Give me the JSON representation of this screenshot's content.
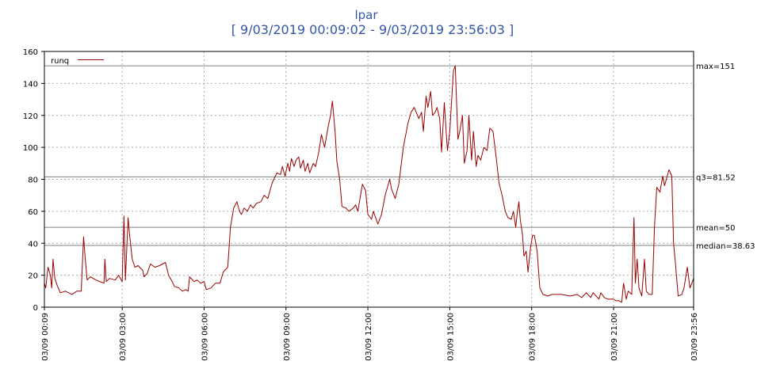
{
  "chart_data": {
    "type": "line",
    "title": "lpar",
    "subtitle": "[ 9/03/2019 00:09:02 - 9/03/2019 23:56:03 ]",
    "xlabel": "",
    "ylabel": "",
    "ylim": [
      0,
      160
    ],
    "yticks": [
      0,
      20,
      40,
      60,
      80,
      100,
      120,
      140,
      160
    ],
    "xlim": [
      "03/09 00:09",
      "03/09 23:56"
    ],
    "xticks": [
      "03/09 00:09",
      "03/09 03:00",
      "03/09 06:00",
      "03/09 09:00",
      "03/09 12:00",
      "03/09 15:00",
      "03/09 18:00",
      "03/09 21:00",
      "03/09 23:56"
    ],
    "grid": true,
    "legend_position": "top-left",
    "colors": {
      "series": "#990000",
      "reference": "#808080",
      "grid": "#aaaaaa",
      "title": "#3355aa"
    },
    "reference_lines": [
      {
        "label": "max=151",
        "value": 151
      },
      {
        "label": "q3=81.52",
        "value": 81.52
      },
      {
        "label": "mean=50",
        "value": 50
      },
      {
        "label": "median=38.63",
        "value": 38.63
      }
    ],
    "series": [
      {
        "name": "runq",
        "points": [
          [
            "03/09 00:09",
            15
          ],
          [
            "03/09 00:12",
            12
          ],
          [
            "03/09 00:17",
            25
          ],
          [
            "03/09 00:22",
            20
          ],
          [
            "03/09 00:25",
            12
          ],
          [
            "03/09 00:28",
            30
          ],
          [
            "03/09 00:32",
            18
          ],
          [
            "03/09 00:38",
            13
          ],
          [
            "03/09 00:44",
            9
          ],
          [
            "03/09 00:55",
            10
          ],
          [
            "03/09 01:10",
            8
          ],
          [
            "03/09 01:20",
            10
          ],
          [
            "03/09 01:28",
            10
          ],
          [
            "03/09 01:30",
            10
          ],
          [
            "03/09 01:35",
            44
          ],
          [
            "03/09 01:38",
            33
          ],
          [
            "03/09 01:43",
            17
          ],
          [
            "03/09 01:50",
            19
          ],
          [
            "03/09 02:02",
            17
          ],
          [
            "03/09 02:20",
            15
          ],
          [
            "03/09 02:22",
            30
          ],
          [
            "03/09 02:25",
            16
          ],
          [
            "03/09 02:32",
            18
          ],
          [
            "03/09 02:45",
            17
          ],
          [
            "03/09 02:52",
            20
          ],
          [
            "03/09 03:00",
            16
          ],
          [
            "03/09 03:04",
            57
          ],
          [
            "03/09 03:07",
            17
          ],
          [
            "03/09 03:13",
            56
          ],
          [
            "03/09 03:16",
            46
          ],
          [
            "03/09 03:22",
            30
          ],
          [
            "03/09 03:28",
            25
          ],
          [
            "03/09 03:35",
            26
          ],
          [
            "03/09 03:45",
            23
          ],
          [
            "03/09 03:48",
            19
          ],
          [
            "03/09 03:55",
            21
          ],
          [
            "03/09 04:02",
            27
          ],
          [
            "03/09 04:12",
            25
          ],
          [
            "03/09 04:22",
            26
          ],
          [
            "03/09 04:35",
            28
          ],
          [
            "03/09 04:42",
            20
          ],
          [
            "03/09 04:48",
            17
          ],
          [
            "03/09 04:55",
            13
          ],
          [
            "03/09 05:05",
            12
          ],
          [
            "03/09 05:12",
            10
          ],
          [
            "03/09 05:20",
            11
          ],
          [
            "03/09 05:25",
            10
          ],
          [
            "03/09 05:28",
            19
          ],
          [
            "03/09 05:38",
            16
          ],
          [
            "03/09 05:45",
            17
          ],
          [
            "03/09 05:52",
            15
          ],
          [
            "03/09 06:00",
            16
          ],
          [
            "03/09 06:05",
            11
          ],
          [
            "03/09 06:15",
            12
          ],
          [
            "03/09 06:25",
            15
          ],
          [
            "03/09 06:35",
            15
          ],
          [
            "03/09 06:42",
            22
          ],
          [
            "03/09 06:52",
            25
          ],
          [
            "03/09 06:58",
            50
          ],
          [
            "03/09 07:05",
            62
          ],
          [
            "03/09 07:12",
            66
          ],
          [
            "03/09 07:18",
            60
          ],
          [
            "03/09 07:22",
            58
          ],
          [
            "03/09 07:28",
            62
          ],
          [
            "03/09 07:35",
            60
          ],
          [
            "03/09 07:42",
            64
          ],
          [
            "03/09 07:48",
            62
          ],
          [
            "03/09 07:55",
            65
          ],
          [
            "03/09 08:05",
            66
          ],
          [
            "03/09 08:12",
            70
          ],
          [
            "03/09 08:20",
            68
          ],
          [
            "03/09 08:30",
            78
          ],
          [
            "03/09 08:40",
            84
          ],
          [
            "03/09 08:48",
            83
          ],
          [
            "03/09 08:52",
            88
          ],
          [
            "03/09 08:58",
            82
          ],
          [
            "03/09 09:04",
            90
          ],
          [
            "03/09 09:08",
            85
          ],
          [
            "03/09 09:12",
            93
          ],
          [
            "03/09 09:18",
            88
          ],
          [
            "03/09 09:22",
            92
          ],
          [
            "03/09 09:28",
            94
          ],
          [
            "03/09 09:32",
            87
          ],
          [
            "03/09 09:38",
            92
          ],
          [
            "03/09 09:42",
            85
          ],
          [
            "03/09 09:48",
            90
          ],
          [
            "03/09 09:52",
            84
          ],
          [
            "03/09 10:00",
            90
          ],
          [
            "03/09 10:05",
            88
          ],
          [
            "03/09 10:12",
            97
          ],
          [
            "03/09 10:18",
            108
          ],
          [
            "03/09 10:25",
            100
          ],
          [
            "03/09 10:32",
            112
          ],
          [
            "03/09 10:38",
            120
          ],
          [
            "03/09 10:42",
            129
          ],
          [
            "03/09 10:48",
            110
          ],
          [
            "03/09 10:52",
            91
          ],
          [
            "03/09 10:58",
            80
          ],
          [
            "03/09 11:03",
            63
          ],
          [
            "03/09 11:12",
            62
          ],
          [
            "03/09 11:18",
            60
          ],
          [
            "03/09 11:28",
            62
          ],
          [
            "03/09 11:33",
            64
          ],
          [
            "03/09 11:38",
            60
          ],
          [
            "03/09 11:48",
            77
          ],
          [
            "03/09 11:55",
            73
          ],
          [
            "03/09 12:00",
            58
          ],
          [
            "03/09 12:08",
            55
          ],
          [
            "03/09 12:12",
            60
          ],
          [
            "03/09 12:22",
            52
          ],
          [
            "03/09 12:30",
            58
          ],
          [
            "03/09 12:38",
            70
          ],
          [
            "03/09 12:48",
            80
          ],
          [
            "03/09 12:52",
            74
          ],
          [
            "03/09 13:00",
            68
          ],
          [
            "03/09 13:08",
            77
          ],
          [
            "03/09 13:18",
            100
          ],
          [
            "03/09 13:28",
            115
          ],
          [
            "03/09 13:35",
            122
          ],
          [
            "03/09 13:42",
            125
          ],
          [
            "03/09 13:52",
            118
          ],
          [
            "03/09 13:58",
            122
          ],
          [
            "03/09 14:02",
            110
          ],
          [
            "03/09 14:08",
            132
          ],
          [
            "03/09 14:12",
            125
          ],
          [
            "03/09 14:18",
            135
          ],
          [
            "03/09 14:22",
            120
          ],
          [
            "03/09 14:28",
            122
          ],
          [
            "03/09 14:32",
            125
          ],
          [
            "03/09 14:38",
            118
          ],
          [
            "03/09 14:42",
            97
          ],
          [
            "03/09 14:48",
            128
          ],
          [
            "03/09 14:52",
            110
          ],
          [
            "03/09 14:55",
            98
          ],
          [
            "03/09 15:00",
            110
          ],
          [
            "03/09 15:08",
            148
          ],
          [
            "03/09 15:12",
            151
          ],
          [
            "03/09 15:18",
            105
          ],
          [
            "03/09 15:22",
            110
          ],
          [
            "03/09 15:28",
            120
          ],
          [
            "03/09 15:32",
            90
          ],
          [
            "03/09 15:38",
            98
          ],
          [
            "03/09 15:42",
            120
          ],
          [
            "03/09 15:48",
            92
          ],
          [
            "03/09 15:52",
            110
          ],
          [
            "03/09 15:58",
            88
          ],
          [
            "03/09 16:02",
            95
          ],
          [
            "03/09 16:08",
            92
          ],
          [
            "03/09 16:15",
            100
          ],
          [
            "03/09 16:22",
            98
          ],
          [
            "03/09 16:28",
            112
          ],
          [
            "03/09 16:35",
            110
          ],
          [
            "03/09 16:42",
            94
          ],
          [
            "03/09 16:48",
            78
          ],
          [
            "03/09 16:55",
            70
          ],
          [
            "03/09 17:02",
            60
          ],
          [
            "03/09 17:08",
            56
          ],
          [
            "03/09 17:15",
            55
          ],
          [
            "03/09 17:20",
            60
          ],
          [
            "03/09 17:25",
            50
          ],
          [
            "03/09 17:28",
            58
          ],
          [
            "03/09 17:32",
            66
          ],
          [
            "03/09 17:35",
            55
          ],
          [
            "03/09 17:40",
            45
          ],
          [
            "03/09 17:43",
            32
          ],
          [
            "03/09 17:48",
            35
          ],
          [
            "03/09 17:52",
            22
          ],
          [
            "03/09 17:58",
            38
          ],
          [
            "03/09 18:02",
            45
          ],
          [
            "03/09 18:06",
            45
          ],
          [
            "03/09 18:12",
            35
          ],
          [
            "03/09 18:18",
            12
          ],
          [
            "03/09 18:25",
            8
          ],
          [
            "03/09 18:35",
            7
          ],
          [
            "03/09 18:45",
            8
          ],
          [
            "03/09 19:05",
            8
          ],
          [
            "03/09 19:25",
            7
          ],
          [
            "03/09 19:40",
            8
          ],
          [
            "03/09 19:50",
            6
          ],
          [
            "03/09 20:00",
            9
          ],
          [
            "03/09 20:10",
            6
          ],
          [
            "03/09 20:15",
            9
          ],
          [
            "03/09 20:28",
            5
          ],
          [
            "03/09 20:32",
            9
          ],
          [
            "03/09 20:40",
            6
          ],
          [
            "03/09 20:48",
            5
          ],
          [
            "03/09 21:00",
            5
          ],
          [
            "03/09 21:05",
            4
          ],
          [
            "03/09 21:12",
            4
          ],
          [
            "03/09 21:18",
            3
          ],
          [
            "03/09 21:22",
            15
          ],
          [
            "03/09 21:28",
            5
          ],
          [
            "03/09 21:32",
            10
          ],
          [
            "03/09 21:40",
            8
          ],
          [
            "03/09 21:45",
            56
          ],
          [
            "03/09 21:48",
            15
          ],
          [
            "03/09 21:52",
            30
          ],
          [
            "03/09 21:56",
            12
          ],
          [
            "03/09 22:02",
            7
          ],
          [
            "03/09 22:08",
            30
          ],
          [
            "03/09 22:12",
            10
          ],
          [
            "03/09 22:18",
            8
          ],
          [
            "03/09 22:25",
            8
          ],
          [
            "03/09 22:30",
            50
          ],
          [
            "03/09 22:35",
            75
          ],
          [
            "03/09 22:42",
            72
          ],
          [
            "03/09 22:48",
            82
          ],
          [
            "03/09 22:52",
            76
          ],
          [
            "03/09 23:02",
            86
          ],
          [
            "03/09 23:08",
            82
          ],
          [
            "03/09 23:12",
            40
          ],
          [
            "03/09 23:16",
            28
          ],
          [
            "03/09 23:22",
            7
          ],
          [
            "03/09 23:30",
            8
          ],
          [
            "03/09 23:35",
            12
          ],
          [
            "03/09 23:42",
            25
          ],
          [
            "03/09 23:48",
            12
          ],
          [
            "03/09 23:56",
            18
          ]
        ]
      }
    ]
  }
}
